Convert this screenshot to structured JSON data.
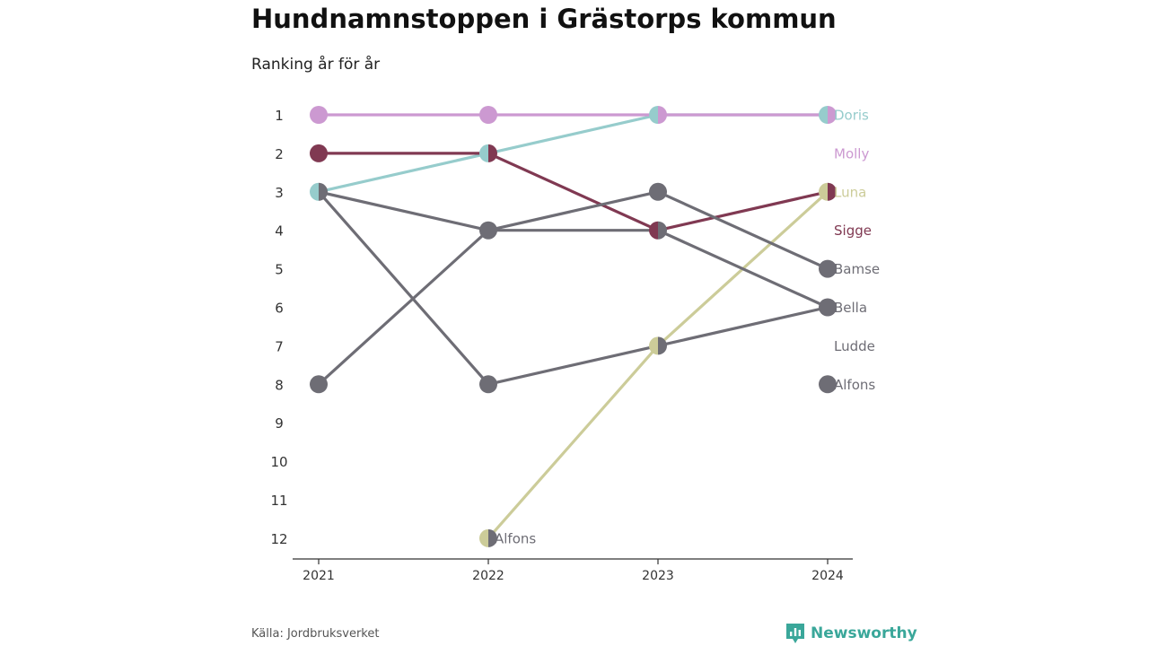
{
  "title": "Hundnamnstoppen i Grästorps kommun",
  "subtitle": "Ranking år för år",
  "source": "Källa: Jordbruksverket",
  "brand": {
    "name": "Newsworthy",
    "icon": "newsworthy-logo-icon",
    "color": "#3aa79a"
  },
  "chart_data": {
    "type": "line",
    "chart_kind": "bump",
    "x": [
      "2021",
      "2022",
      "2023",
      "2024"
    ],
    "y_ticks": [
      "1",
      "2",
      "3",
      "4",
      "5",
      "6",
      "7",
      "8",
      "9",
      "10",
      "11",
      "12"
    ],
    "ylim": [
      1,
      12
    ],
    "y_reversed": true,
    "grid": false,
    "series": [
      {
        "name": "Doris",
        "color": "#96cccc",
        "values": [
          3,
          2,
          1,
          1
        ]
      },
      {
        "name": "Molly",
        "color": "#cc99d1",
        "values": [
          1,
          1,
          1,
          1
        ]
      },
      {
        "name": "Luna",
        "color": "#cccc99",
        "values": [
          null,
          12,
          7,
          3
        ]
      },
      {
        "name": "Sigge",
        "color": "#803952",
        "values": [
          2,
          2,
          4,
          3
        ]
      },
      {
        "name": "Bamse",
        "color": "#6e6d75",
        "values": [
          8,
          4,
          3,
          5
        ]
      },
      {
        "name": "Bella",
        "color": "#6e6d75",
        "values": [
          3,
          4,
          4,
          6
        ]
      },
      {
        "name": "Ludde",
        "color": "#6e6d75",
        "values": [
          3,
          8,
          7,
          6
        ]
      },
      {
        "name": "Alfons",
        "color": "#6e6d75",
        "values": [
          null,
          12,
          null,
          8
        ]
      }
    ],
    "series_labels": [
      {
        "series": "Doris",
        "text": "Doris",
        "year": "2024",
        "rank": 1
      },
      {
        "series": "Molly",
        "text": "Molly",
        "year": "2024",
        "rank": 2
      },
      {
        "series": "Luna",
        "text": "Luna",
        "year": "2024",
        "rank": 3
      },
      {
        "series": "Sigge",
        "text": "Sigge",
        "year": "2024",
        "rank": 4
      },
      {
        "series": "Bamse",
        "text": "Bamse",
        "year": "2024",
        "rank": 5
      },
      {
        "series": "Bella",
        "text": "Bella",
        "year": "2024",
        "rank": 6
      },
      {
        "series": "Ludde",
        "text": "Ludde",
        "year": "2024",
        "rank": 7
      },
      {
        "series": "Alfons",
        "text": "Alfons",
        "year": "2024",
        "rank": 8
      },
      {
        "series": "Alfons",
        "text": "Alfons",
        "year": "2022",
        "rank": 12
      }
    ]
  }
}
